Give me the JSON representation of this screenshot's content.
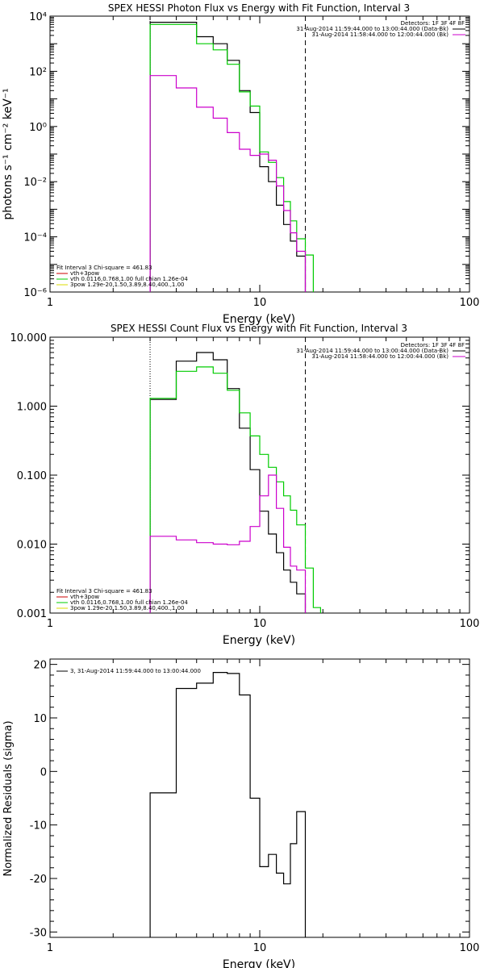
{
  "chart_data": [
    {
      "type": "line",
      "title": "SPEX HESSI Photon Flux vs Energy with Fit Function, Interval 3",
      "xlabel": "Energy (keV)",
      "ylabel": "photons s⁻¹ cm⁻² keV⁻¹",
      "xscale": "log",
      "yscale": "log",
      "xlim": [
        1,
        100
      ],
      "ylim": [
        1e-06,
        10000
      ],
      "xticks": [
        {
          "v": 1,
          "label": "1"
        },
        {
          "v": 10,
          "label": "10"
        },
        {
          "v": 100,
          "label": "100"
        }
      ],
      "yticks": [
        {
          "v": 10000,
          "label": "10⁴"
        },
        {
          "v": 100,
          "label": "10²"
        },
        {
          "v": 1,
          "label": "10⁰"
        },
        {
          "v": 0.01,
          "label": "10⁻²"
        },
        {
          "v": 0.0001,
          "label": "10⁻⁴"
        },
        {
          "v": 1e-06,
          "label": "10⁻⁶"
        }
      ],
      "vlines": [
        {
          "x": 3.0,
          "style": "dotted"
        },
        {
          "x": 16.5,
          "style": "dashed"
        }
      ],
      "legend_right": {
        "header": "Detectors: 1F 3F 4F 8F",
        "entries": [
          {
            "text": "31-Aug-2014 11:59:44.000 to 13:00:44.000 (Data-Bk)",
            "color": "#000000"
          },
          {
            "text": "31-Aug-2014 11:58:44.000 to 12:00:44.000 (Bk)",
            "color": "#cc00cc"
          }
        ]
      },
      "legend_left": {
        "header": "Fit Interval 3   Chi-square = 461.83",
        "entries": [
          {
            "text": "vth+3pow",
            "color": "#cc0000"
          },
          {
            "text": "vth 0.0116,0.768,1.00  full chian 1.26e-04",
            "color": "#00cc00"
          },
          {
            "text": "3pow 1.29e-20,1.50,3.89,8.40,400.,1.00",
            "color": "#dddd00"
          }
        ]
      },
      "series": [
        {
          "color": "#000000",
          "edges": [
            3,
            4,
            5,
            6,
            7,
            8,
            9,
            10,
            11,
            12,
            13,
            14,
            15,
            16.5
          ],
          "values": [
            6000,
            6000,
            1800,
            1000,
            250,
            20,
            3.2,
            0.035,
            0.01,
            0.0014,
            0.00028,
            7e-05,
            2e-05
          ],
          "drop_to": 1e-06
        },
        {
          "color": "#00cc00",
          "edges": [
            3,
            4,
            5,
            6,
            7,
            8,
            9,
            10,
            11,
            12,
            13,
            14,
            15,
            16.5,
            18
          ],
          "values": [
            5000,
            5000,
            1000,
            600,
            180,
            18,
            5.5,
            0.12,
            0.05,
            0.014,
            0.0019,
            0.00038,
            8.5e-05,
            2.2e-05
          ],
          "drop_to": 1e-06
        },
        {
          "color": "#cc00cc",
          "edges": [
            3,
            4,
            5,
            6,
            7,
            8,
            9,
            10,
            11,
            12,
            13,
            14,
            15,
            16.5
          ],
          "values": [
            70,
            25,
            5,
            2,
            0.6,
            0.15,
            0.09,
            0.1,
            0.06,
            0.007,
            0.0009,
            0.00014,
            3e-05
          ],
          "drop_to": 1e-06
        }
      ]
    },
    {
      "type": "line",
      "title": "SPEX HESSI Count Flux vs Energy with Fit Function, Interval 3",
      "xlabel": "Energy (keV)",
      "ylabel": "",
      "xscale": "log",
      "yscale": "log",
      "xlim": [
        1,
        100
      ],
      "ylim": [
        0.001,
        10
      ],
      "xticks": [
        {
          "v": 1,
          "label": "1"
        },
        {
          "v": 10,
          "label": "10"
        },
        {
          "v": 100,
          "label": "100"
        }
      ],
      "yticks": [
        {
          "v": 10,
          "label": "10.000"
        },
        {
          "v": 1,
          "label": "1.000"
        },
        {
          "v": 0.1,
          "label": "0.100"
        },
        {
          "v": 0.01,
          "label": "0.010"
        },
        {
          "v": 0.001,
          "label": "0.001"
        }
      ],
      "vlines": [
        {
          "x": 3.0,
          "style": "dotted"
        },
        {
          "x": 16.5,
          "style": "dashed"
        }
      ],
      "legend_right": {
        "header": "Detectors: 1F 3F 4F 8F",
        "entries": [
          {
            "text": "31-Aug-2014 11:59:44.000 to 13:00:44.000 (Data-Bk)",
            "color": "#000000"
          },
          {
            "text": "31-Aug-2014 11:58:44.000 to 12:00:44.000 (Bk)",
            "color": "#cc00cc"
          }
        ]
      },
      "legend_left": {
        "header": "Fit Interval 3   Chi-square = 461.83",
        "entries": [
          {
            "text": "vth+3pow",
            "color": "#cc0000"
          },
          {
            "text": "vth 0.0116,0.768,1.00  full chian 1.26e-04",
            "color": "#00cc00"
          },
          {
            "text": "3pow 1.29e-20,1.50,3.89,8.40,400.,1.00",
            "color": "#dddd00"
          }
        ]
      },
      "series": [
        {
          "color": "#000000",
          "edges": [
            3,
            4,
            5,
            6,
            7,
            8,
            9,
            10,
            11,
            12,
            13,
            14,
            15,
            16.5
          ],
          "values": [
            1.25,
            4.5,
            6.0,
            4.7,
            1.8,
            0.48,
            0.12,
            0.03,
            0.014,
            0.0075,
            0.0042,
            0.0028,
            0.0019
          ],
          "drop_to": 0.001
        },
        {
          "color": "#00cc00",
          "edges": [
            3,
            4,
            5,
            6,
            7,
            8,
            9,
            10,
            11,
            12,
            13,
            14,
            15,
            16.5,
            18,
            19.5
          ],
          "values": [
            1.3,
            3.2,
            3.7,
            3.0,
            1.7,
            0.8,
            0.37,
            0.2,
            0.13,
            0.08,
            0.05,
            0.031,
            0.019,
            0.0045,
            0.0012
          ],
          "drop_to": 0.001
        },
        {
          "color": "#cc00cc",
          "edges": [
            3,
            4,
            5,
            6,
            7,
            8,
            9,
            10,
            11,
            12,
            13,
            14,
            15,
            16.5
          ],
          "values": [
            0.013,
            0.0115,
            0.0105,
            0.01,
            0.0098,
            0.011,
            0.018,
            0.05,
            0.1,
            0.033,
            0.009,
            0.0048,
            0.0042
          ],
          "drop_to": 0.001
        }
      ]
    },
    {
      "type": "line",
      "title": "",
      "xlabel": "Energy (keV)",
      "ylabel": "Normalized Residuals (sigma)",
      "xscale": "log",
      "yscale": "linear",
      "xlim": [
        1,
        100
      ],
      "ylim": [
        -31,
        21
      ],
      "xticks": [
        {
          "v": 1,
          "label": "1"
        },
        {
          "v": 10,
          "label": "10"
        },
        {
          "v": 100,
          "label": "100"
        }
      ],
      "yticks": [
        {
          "v": 20,
          "label": "20"
        },
        {
          "v": 10,
          "label": "10"
        },
        {
          "v": 0,
          "label": "0"
        },
        {
          "v": -10,
          "label": "-10"
        },
        {
          "v": -20,
          "label": "-20"
        },
        {
          "v": -30,
          "label": "-30"
        }
      ],
      "vlines": [],
      "legend_left": {
        "header": "",
        "entries": [
          {
            "text": "3, 31-Aug-2014 11:59:44.000 to 13:00:44.000",
            "color": "#000000"
          }
        ]
      },
      "series": [
        {
          "color": "#000000",
          "edges": [
            3,
            4,
            5,
            6,
            7,
            8,
            9,
            10,
            11,
            12,
            13,
            14,
            15,
            16.5
          ],
          "values": [
            -4,
            15.5,
            16.5,
            18.5,
            18.3,
            14.3,
            -5,
            -17.8,
            -15.5,
            -19,
            -21,
            -13.5,
            -7.5
          ],
          "drop_to": -31
        }
      ]
    }
  ]
}
